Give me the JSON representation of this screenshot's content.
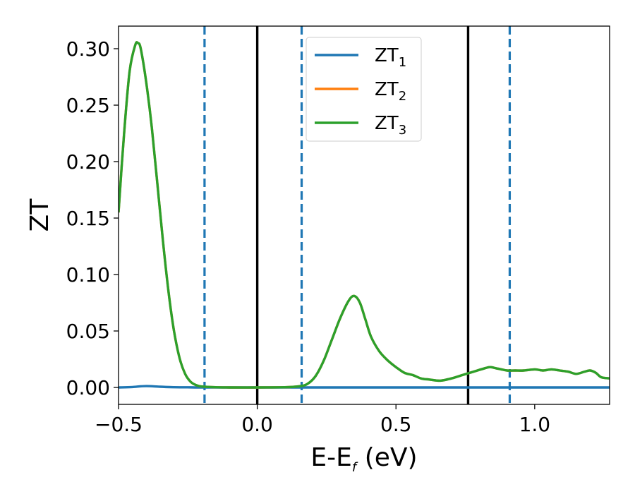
{
  "chart_data": {
    "type": "line",
    "xlabel": "E-E",
    "xlabel_sub": "f",
    "xlabel_unit": " (eV)",
    "ylabel": "ZT",
    "xlim": [
      -0.5,
      1.27
    ],
    "ylim": [
      -0.015,
      0.32
    ],
    "xticks": [
      -0.5,
      0.0,
      0.5,
      1.0
    ],
    "xtick_labels": [
      "−0.5",
      "0.0",
      "0.5",
      "1.0"
    ],
    "yticks": [
      0.0,
      0.05,
      0.1,
      0.15,
      0.2,
      0.25,
      0.3
    ],
    "ytick_labels": [
      "0.00",
      "0.05",
      "0.10",
      "0.15",
      "0.20",
      "0.25",
      "0.30"
    ],
    "grid": false,
    "legend_position": "top-center",
    "series": [
      {
        "name": "ZT",
        "name_sub": "1",
        "color": "#1f77b4",
        "x": [
          -0.5,
          -0.45,
          -0.4,
          -0.35,
          -0.3,
          -0.25,
          -0.2,
          0.0,
          0.5,
          1.0,
          1.27
        ],
        "y": [
          0.0,
          0.0004,
          0.0012,
          0.0006,
          0.0002,
          0.0001,
          0.0,
          0.0,
          0.0,
          0.0,
          0.0
        ]
      },
      {
        "name": "ZT",
        "name_sub": "2",
        "color": "#ff7f0e",
        "x": [
          -0.5,
          -0.48,
          -0.46,
          -0.44,
          -0.43,
          -0.42,
          -0.4,
          -0.38,
          -0.36,
          -0.34,
          -0.32,
          -0.3,
          -0.28,
          -0.26,
          -0.24,
          -0.22,
          -0.2,
          -0.15,
          -0.1,
          0.0,
          0.1,
          0.15,
          0.18,
          0.21,
          0.24,
          0.27,
          0.3,
          0.33,
          0.35,
          0.37,
          0.39,
          0.41,
          0.44,
          0.47,
          0.5,
          0.53,
          0.56,
          0.59,
          0.62,
          0.66,
          0.7,
          0.74,
          0.78,
          0.82,
          0.84,
          0.86,
          0.88,
          0.9,
          0.93,
          0.96,
          1.0,
          1.03,
          1.06,
          1.09,
          1.12,
          1.15,
          1.18,
          1.2,
          1.22,
          1.24,
          1.27
        ],
        "y": [
          0.155,
          0.225,
          0.28,
          0.303,
          0.305,
          0.3,
          0.27,
          0.23,
          0.18,
          0.13,
          0.085,
          0.05,
          0.026,
          0.012,
          0.005,
          0.002,
          0.0008,
          0.0002,
          0.0,
          0.0,
          0.0002,
          0.001,
          0.003,
          0.01,
          0.024,
          0.043,
          0.062,
          0.077,
          0.081,
          0.075,
          0.06,
          0.045,
          0.032,
          0.024,
          0.018,
          0.013,
          0.011,
          0.008,
          0.007,
          0.006,
          0.008,
          0.011,
          0.014,
          0.017,
          0.018,
          0.017,
          0.016,
          0.015,
          0.015,
          0.015,
          0.016,
          0.015,
          0.016,
          0.015,
          0.014,
          0.012,
          0.014,
          0.015,
          0.013,
          0.009,
          0.008
        ]
      },
      {
        "name": "ZT",
        "name_sub": "3",
        "color": "#2ca02c",
        "x": [
          -0.5,
          -0.48,
          -0.46,
          -0.44,
          -0.43,
          -0.42,
          -0.4,
          -0.38,
          -0.36,
          -0.34,
          -0.32,
          -0.3,
          -0.28,
          -0.26,
          -0.24,
          -0.22,
          -0.2,
          -0.15,
          -0.1,
          0.0,
          0.1,
          0.15,
          0.18,
          0.21,
          0.24,
          0.27,
          0.3,
          0.33,
          0.35,
          0.37,
          0.39,
          0.41,
          0.44,
          0.47,
          0.5,
          0.53,
          0.56,
          0.59,
          0.62,
          0.66,
          0.7,
          0.74,
          0.78,
          0.82,
          0.84,
          0.86,
          0.88,
          0.9,
          0.93,
          0.96,
          1.0,
          1.03,
          1.06,
          1.09,
          1.12,
          1.15,
          1.18,
          1.2,
          1.22,
          1.24,
          1.27
        ],
        "y": [
          0.155,
          0.225,
          0.28,
          0.303,
          0.305,
          0.3,
          0.27,
          0.23,
          0.18,
          0.13,
          0.085,
          0.05,
          0.026,
          0.012,
          0.005,
          0.002,
          0.0008,
          0.0002,
          0.0,
          0.0,
          0.0002,
          0.001,
          0.003,
          0.01,
          0.024,
          0.043,
          0.062,
          0.077,
          0.081,
          0.075,
          0.06,
          0.045,
          0.032,
          0.024,
          0.018,
          0.013,
          0.011,
          0.008,
          0.007,
          0.006,
          0.008,
          0.011,
          0.014,
          0.017,
          0.018,
          0.017,
          0.016,
          0.015,
          0.015,
          0.015,
          0.016,
          0.015,
          0.016,
          0.015,
          0.014,
          0.012,
          0.014,
          0.015,
          0.013,
          0.009,
          0.008
        ]
      }
    ],
    "vlines": [
      {
        "x": -0.19,
        "style": "dashed",
        "color": "#1f77b4"
      },
      {
        "x": 0.0,
        "style": "solid",
        "color": "#000000"
      },
      {
        "x": 0.16,
        "style": "dashed",
        "color": "#1f77b4"
      },
      {
        "x": 0.76,
        "style": "solid",
        "color": "#000000"
      },
      {
        "x": 0.91,
        "style": "dashed",
        "color": "#1f77b4"
      }
    ]
  }
}
